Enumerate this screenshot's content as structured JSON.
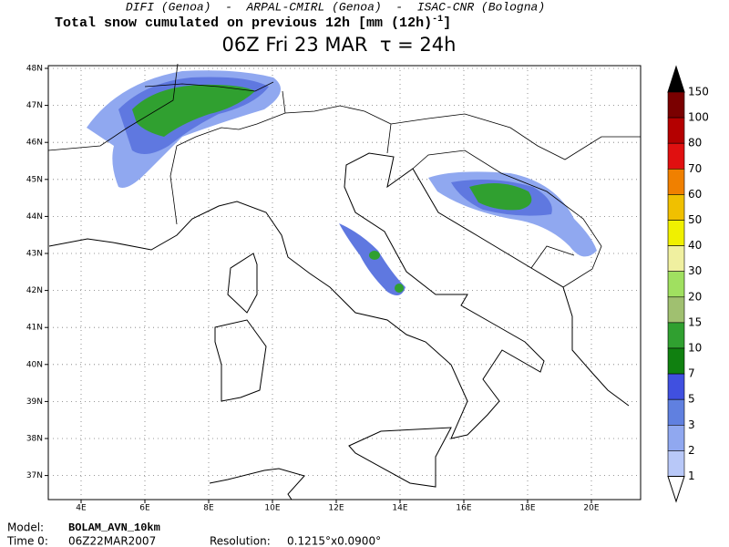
{
  "header": {
    "credits": "DIFI (Genoa)  -  ARPAL-CMIRL (Genoa)  -  ISAC-CNR (Bologna)",
    "title": "Total snow cumulated on previous 12h [mm (12h)",
    "title_exponent": "-1",
    "title_end": "]",
    "time": "06Z Fri 23 MAR  τ = 24h"
  },
  "map": {
    "lat_labels": [
      "48N",
      "47N",
      "46N",
      "45N",
      "44N",
      "43N",
      "42N",
      "41N",
      "40N",
      "39N",
      "38N",
      "37N"
    ],
    "lon_labels": [
      "4E",
      "6E",
      "8E",
      "10E",
      "12E",
      "14E",
      "16E",
      "18E",
      "20E"
    ]
  },
  "colorbar": {
    "labels": [
      "150",
      "100",
      "80",
      "70",
      "60",
      "50",
      "40",
      "30",
      "20",
      "15",
      "10",
      "7",
      "5",
      "3",
      "2",
      "1"
    ]
  },
  "footer": {
    "model_label": "Model:",
    "model": "BOLAM_AVN_10km",
    "time_label": "Time 0:",
    "time": "06Z22MAR2007",
    "resolution_label": "Resolution:",
    "resolution": "0.1215°x0.0900°"
  }
}
